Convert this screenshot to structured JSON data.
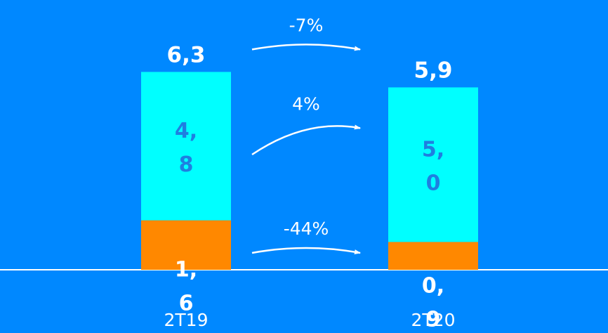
{
  "chart_data": {
    "type": "bar",
    "stacked": true,
    "categories": [
      "2T19",
      "2T20"
    ],
    "series": [
      {
        "values": [
          1.6,
          0.9
        ],
        "labels": [
          "1,\n6",
          "0,\n9"
        ],
        "color": "#ff8800"
      },
      {
        "values": [
          4.8,
          5.0
        ],
        "labels": [
          "4,\n8",
          "5,\n0"
        ],
        "color": "#00ffff"
      }
    ],
    "totals": [
      "6,3",
      "5,9"
    ],
    "changes": [
      {
        "label": "-7%",
        "applies_to": "total"
      },
      {
        "label": "4%",
        "applies_to": "top_segment"
      },
      {
        "label": "-44%",
        "applies_to": "bottom_segment"
      }
    ],
    "grid": false,
    "legend": "none",
    "colors": {
      "background": "#0088ff",
      "axis": "#ffffff",
      "arrow": "#ffffff"
    }
  }
}
